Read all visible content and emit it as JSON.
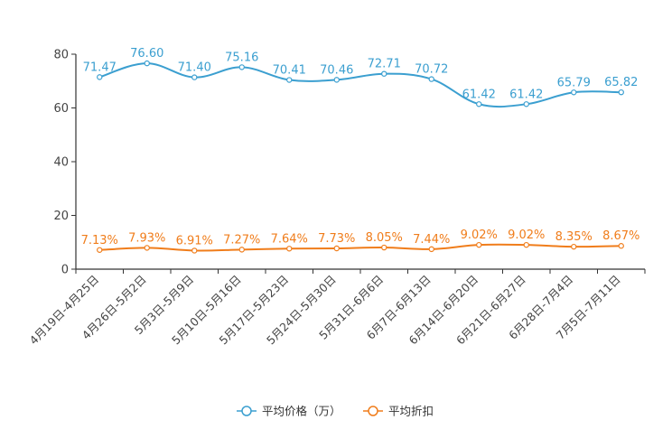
{
  "chart_data": {
    "type": "line",
    "categories": [
      "4月19日-4月25日",
      "4月26日-5月2日",
      "5月3日-5月9日",
      "5月10日-5月16日",
      "5月17日-5月23日",
      "5月24日-5月30日",
      "5月31日-6月6日",
      "6月7日-6月13日",
      "6月14日-6月20日",
      "6月21日-6月27日",
      "6月28日-7月4日",
      "7月5日-7月11日"
    ],
    "yticks": [
      "0",
      "20",
      "40",
      "60",
      "80"
    ],
    "ylim": [
      0,
      80
    ],
    "series": [
      {
        "name": "平均价格（万）",
        "color": "#3b9fd0",
        "values": [
          71.47,
          76.6,
          71.4,
          75.16,
          70.41,
          70.46,
          72.71,
          70.72,
          61.42,
          61.42,
          65.79,
          65.82
        ],
        "labels": [
          "71.47",
          "76.60",
          "71.40",
          "75.16",
          "70.41",
          "70.46",
          "72.71",
          "70.72",
          "61.42",
          "61.42",
          "65.79",
          "65.82"
        ]
      },
      {
        "name": "平均折扣",
        "color": "#f07d1b",
        "values": [
          7.13,
          7.93,
          6.91,
          7.27,
          7.64,
          7.73,
          8.05,
          7.44,
          9.02,
          9.02,
          8.35,
          8.67
        ],
        "labels": [
          "7.13%",
          "7.93%",
          "6.91%",
          "7.27%",
          "7.64%",
          "7.73%",
          "8.05%",
          "7.44%",
          "9.02%",
          "9.02%",
          "8.35%",
          "8.67%"
        ]
      }
    ],
    "legend_position": "bottom-center"
  }
}
